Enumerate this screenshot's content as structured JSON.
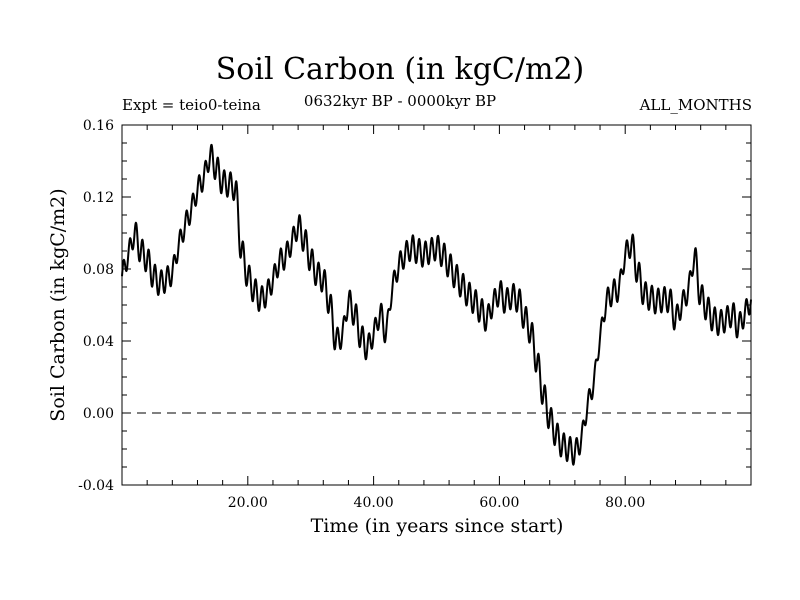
{
  "chart_data": {
    "type": "line",
    "title": "Soil Carbon (in kgC/m2)",
    "subtitle": "0632kyr BP - 0000kyr BP",
    "experiment_label": "Expt = teio0-teina",
    "period_label": "ALL_MONTHS",
    "xlabel": "Time (in years since start)",
    "ylabel": "Soil Carbon (in kgC/m2)",
    "xlim": [
      0,
      100
    ],
    "ylim": [
      -0.04,
      0.16
    ],
    "xticks": [
      20,
      40,
      60,
      80
    ],
    "xtick_labels": [
      "20.00",
      "40.00",
      "60.00",
      "80.00"
    ],
    "yticks": [
      -0.04,
      0.0,
      0.04,
      0.08,
      0.12,
      0.16
    ],
    "ytick_labels": [
      "-0.04",
      "0.00",
      "0.04",
      "0.08",
      "0.12",
      "0.16"
    ],
    "reference_line": {
      "y": 0.0,
      "style": "dashed"
    },
    "oscillation": {
      "amplitude": 0.007,
      "period_years": 1.0
    },
    "series": [
      {
        "name": "Soil Carbon",
        "x": [
          0,
          1,
          2,
          3,
          4,
          5,
          6,
          7,
          8,
          9,
          10,
          11,
          12,
          13,
          14,
          15,
          16,
          17,
          18,
          19,
          20,
          21,
          22,
          23,
          24,
          25,
          26,
          27,
          28,
          29,
          30,
          31,
          32,
          33,
          34,
          35,
          36,
          37,
          38,
          39,
          40,
          41,
          42,
          43,
          44,
          45,
          46,
          47,
          48,
          49,
          50,
          51,
          52,
          53,
          54,
          55,
          56,
          57,
          58,
          59,
          60,
          61,
          62,
          63,
          64,
          65,
          66,
          67,
          68,
          69,
          70,
          71,
          72,
          73,
          74,
          75,
          76,
          77,
          78,
          79,
          80,
          81,
          82,
          83,
          84,
          85,
          86,
          87,
          88,
          89,
          90,
          91,
          92,
          93,
          94,
          95,
          96,
          97,
          98,
          99,
          100
        ],
        "y": [
          0.076,
          0.088,
          0.1,
          0.09,
          0.085,
          0.076,
          0.072,
          0.074,
          0.078,
          0.093,
          0.104,
          0.113,
          0.124,
          0.131,
          0.143,
          0.136,
          0.128,
          0.127,
          0.125,
          0.09,
          0.076,
          0.068,
          0.063,
          0.066,
          0.074,
          0.084,
          0.087,
          0.095,
          0.104,
          0.096,
          0.085,
          0.077,
          0.074,
          0.061,
          0.04,
          0.043,
          0.062,
          0.055,
          0.042,
          0.036,
          0.044,
          0.055,
          0.045,
          0.07,
          0.082,
          0.088,
          0.092,
          0.09,
          0.088,
          0.09,
          0.092,
          0.088,
          0.082,
          0.076,
          0.071,
          0.066,
          0.062,
          0.057,
          0.052,
          0.061,
          0.067,
          0.062,
          0.065,
          0.063,
          0.053,
          0.045,
          0.028,
          0.01,
          -0.003,
          -0.012,
          -0.018,
          -0.02,
          -0.022,
          -0.015,
          0.004,
          0.017,
          0.042,
          0.062,
          0.067,
          0.069,
          0.088,
          0.094,
          0.078,
          0.066,
          0.064,
          0.062,
          0.063,
          0.063,
          0.052,
          0.06,
          0.068,
          0.087,
          0.065,
          0.058,
          0.052,
          0.05,
          0.052,
          0.055,
          0.048,
          0.055,
          0.063
        ]
      }
    ]
  }
}
